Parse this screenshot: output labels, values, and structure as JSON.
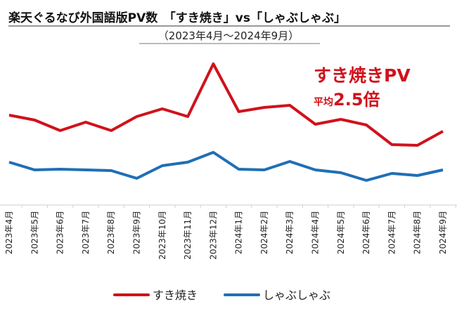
{
  "chart_data": {
    "type": "line",
    "title": "楽天ぐるなび外国語版PV数　「すき焼き」vs「しゃぶしゃぶ」",
    "subtitle": "（2023年4月～2024年9月）",
    "annotation": {
      "line1": "すき焼きPV",
      "prefix": "平均",
      "value": "2.5倍"
    },
    "categories": [
      "2023年4月",
      "2023年5月",
      "2023年6月",
      "2023年7月",
      "2023年8月",
      "2023年9月",
      "2023年10月",
      "2023年11月",
      "2023年12月",
      "2024年1月",
      "2024年2月",
      "2024年3月",
      "2024年4月",
      "2024年5月",
      "2024年6月",
      "2024年7月",
      "2024年8月",
      "2024年9月"
    ],
    "series": [
      {
        "name": "すき焼き",
        "color": "#d0121b",
        "values": [
          125,
          118,
          103,
          115,
          103,
          123,
          134,
          123,
          198,
          130,
          136,
          139,
          112,
          119,
          111,
          83,
          82,
          102
        ]
      },
      {
        "name": "しゃぶしゃぶ",
        "color": "#1f6fb5",
        "values": [
          58,
          47,
          48,
          47,
          46,
          35,
          53,
          58,
          72,
          48,
          47,
          59,
          47,
          43,
          32,
          42,
          39,
          47
        ]
      }
    ],
    "xlabel": "",
    "ylabel": "",
    "ylim": [
      0,
      210
    ],
    "grid": false,
    "legend_position": "bottom"
  }
}
